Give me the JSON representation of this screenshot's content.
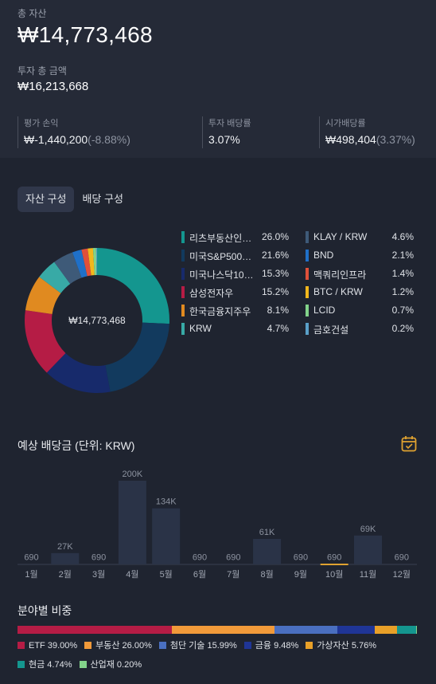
{
  "summary": {
    "total_label": "총 자산",
    "total_value": "₩14,773,468",
    "invest_label": "투자 총 금액",
    "invest_value": "₩16,213,668",
    "metrics": [
      {
        "label": "평가 손익",
        "value": "₩-1,440,200",
        "sub": "(-8.88%)"
      },
      {
        "label": "투자 배당률",
        "value": "3.07%",
        "sub": ""
      },
      {
        "label": "시가배당률",
        "value": "₩498,404",
        "sub": "(3.37%)"
      }
    ]
  },
  "tabs": [
    {
      "label": "자산 구성",
      "active": true
    },
    {
      "label": "배당 구성",
      "active": false
    }
  ],
  "chart_data": [
    {
      "type": "pie",
      "center_label": "₩14,773,468",
      "slices": [
        {
          "name": "리츠부동산인…",
          "pct_label": "26.0%",
          "value": 26.0,
          "color": "#14968f"
        },
        {
          "name": "미국S&P500(…",
          "pct_label": "21.6%",
          "value": 21.6,
          "color": "#123a5e"
        },
        {
          "name": "미국나스닥100…",
          "pct_label": "15.3%",
          "value": 15.3,
          "color": "#172a6b"
        },
        {
          "name": "삼성전자우",
          "pct_label": "15.2%",
          "value": 15.2,
          "color": "#b51c45"
        },
        {
          "name": "한국금융지주우",
          "pct_label": "8.1%",
          "value": 8.1,
          "color": "#e08a20"
        },
        {
          "name": "KRW",
          "pct_label": "4.7%",
          "value": 4.7,
          "color": "#38aaa6"
        },
        {
          "name": "KLAY / KRW",
          "pct_label": "4.6%",
          "value": 4.6,
          "color": "#3e5a78"
        },
        {
          "name": "BND",
          "pct_label": "2.1%",
          "value": 2.1,
          "color": "#1f70c8"
        },
        {
          "name": "맥쿼리인프라",
          "pct_label": "1.4%",
          "value": 1.4,
          "color": "#e0503a"
        },
        {
          "name": "BTC / KRW",
          "pct_label": "1.2%",
          "value": 1.2,
          "color": "#f2b71c"
        },
        {
          "name": "LCID",
          "pct_label": "0.7%",
          "value": 0.7,
          "color": "#82d38a"
        },
        {
          "name": "금호건설",
          "pct_label": "0.2%",
          "value": 0.2,
          "color": "#5aa0c8"
        }
      ]
    },
    {
      "type": "bar",
      "title": "예상 배당금 (단위: KRW)",
      "categories": [
        "1월",
        "2월",
        "3월",
        "4월",
        "5월",
        "6월",
        "7월",
        "8월",
        "9월",
        "10월",
        "11월",
        "12월"
      ],
      "values": [
        690,
        27000,
        690,
        200000,
        134000,
        690,
        690,
        61000,
        690,
        690,
        69000,
        690
      ],
      "value_labels": [
        "690",
        "27K",
        "690",
        "200K",
        "134K",
        "690",
        "690",
        "61K",
        "690",
        "690",
        "69K",
        "690"
      ],
      "highlight_index": 9,
      "bar_color": "#2a3347",
      "highlight_color": "#e0a230"
    },
    {
      "type": "bar",
      "title": "분야별 비중",
      "stacked": true,
      "series": [
        {
          "name": "ETF",
          "value": 39.0,
          "label": "ETF 39.00%",
          "color": "#b51c45"
        },
        {
          "name": "부동산",
          "value": 26.0,
          "label": "부동산 26.00%",
          "color": "#f19a3a"
        },
        {
          "name": "첨단 기술",
          "value": 15.99,
          "label": "첨단 기술 15.99%",
          "color": "#4a6fc0"
        },
        {
          "name": "금융",
          "value": 9.48,
          "label": "금융 9.48%",
          "color": "#1f3596"
        },
        {
          "name": "가상자산",
          "value": 5.76,
          "label": "가상자산 5.76%",
          "color": "#e8a028"
        },
        {
          "name": "현금",
          "value": 4.74,
          "label": "현금 4.74%",
          "color": "#14968f"
        },
        {
          "name": "산업재",
          "value": 0.2,
          "label": "산업재 0.20%",
          "color": "#82d38a"
        }
      ]
    }
  ],
  "icons": {
    "calendar": "calendar-icon"
  },
  "colors": {
    "accent": "#e0a230",
    "bg": "#1f2430",
    "card": "#252a37"
  }
}
